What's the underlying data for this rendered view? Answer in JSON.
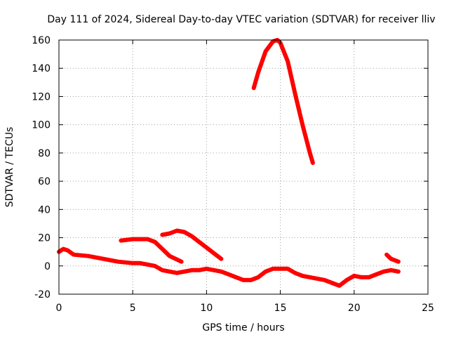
{
  "chart_data": {
    "type": "line",
    "title": "Day 111 of 2024, Sidereal Day-to-day VTEC variation (SDTVAR) for receiver lliv",
    "xlabel": "GPS time / hours",
    "ylabel": "SDTVAR / TECUs",
    "xlim": [
      0,
      25
    ],
    "ylim": [
      -20,
      160
    ],
    "xticks": [
      "0",
      "5",
      "10",
      "15",
      "20",
      "25"
    ],
    "yticks": [
      "-20",
      "0",
      "20",
      "40",
      "60",
      "80",
      "100",
      "120",
      "140",
      "160"
    ],
    "grid": true,
    "legend": "none",
    "line_color": "#ff0000",
    "series": [
      {
        "segments": [
          {
            "x": [
              0.0,
              0.3,
              0.6,
              1.0,
              2.0,
              3.0,
              4.0,
              5.0,
              5.5,
              6.0,
              6.5,
              7.0,
              7.5,
              8.0,
              8.5,
              9.0,
              9.5,
              10.0,
              10.5,
              11.0,
              11.5,
              12.0,
              12.5,
              13.0,
              13.5,
              14.0,
              14.5,
              15.0,
              15.5,
              16.0,
              16.5,
              17.0,
              17.5,
              18.0,
              18.5,
              19.0,
              19.5,
              20.0,
              20.5,
              21.0,
              21.5,
              22.0,
              22.5,
              23.0
            ],
            "y": [
              10,
              12,
              11,
              8,
              7,
              5,
              3,
              2,
              2,
              1,
              0,
              -3,
              -4,
              -5,
              -4,
              -3,
              -3,
              -2,
              -3,
              -4,
              -6,
              -8,
              -10,
              -10,
              -8,
              -4,
              -2,
              -2,
              -2,
              -5,
              -7,
              -8,
              -9,
              -10,
              -12,
              -14,
              -10,
              -7,
              -8,
              -8,
              -6,
              -4,
              -3,
              -4
            ]
          },
          {
            "x": [
              4.2,
              5.0,
              5.5,
              6.0,
              6.5,
              7.0,
              7.5,
              8.3
            ],
            "y": [
              18,
              19,
              19,
              19,
              17,
              12,
              7,
              3
            ]
          },
          {
            "x": [
              7.0,
              7.5,
              8.0,
              8.5,
              9.0,
              9.5,
              10.0,
              10.5,
              11.0
            ],
            "y": [
              22,
              23,
              25,
              24,
              21,
              17,
              13,
              9,
              5
            ]
          },
          {
            "x": [
              13.2,
              13.5,
              14.0,
              14.5,
              14.8,
              15.0,
              15.5,
              16.0,
              16.5,
              17.0,
              17.2
            ],
            "y": [
              126,
              137,
              152,
              159,
              160,
              158,
              145,
              122,
              100,
              80,
              73
            ]
          },
          {
            "x": [
              22.2,
              22.5,
              23.0
            ],
            "y": [
              8,
              5,
              3
            ]
          }
        ]
      }
    ]
  }
}
